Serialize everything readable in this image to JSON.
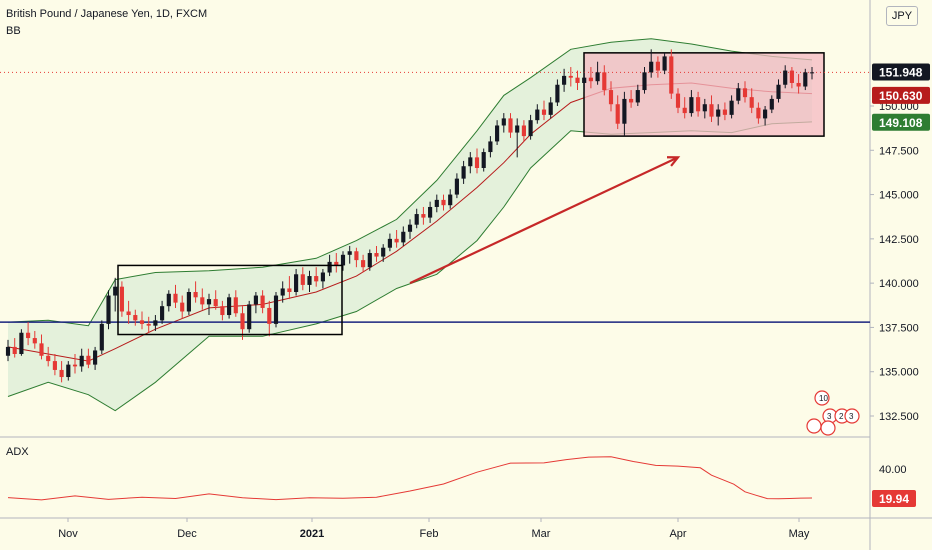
{
  "header": {
    "symbol": "British Pound / Japanese Yen, 1D, FXCM",
    "indicator": "BB",
    "currency_button": "JPY"
  },
  "adx_panel": {
    "label": "ADX"
  },
  "colors": {
    "background": "#fdfce8",
    "bull": "#131722",
    "bear": "#e53935",
    "bb_fill": "#cfe8cf",
    "bb_band": "#2e7d32",
    "bb_basis": "#b71c1c",
    "support_line": "#1a237e",
    "highlight_box": "#f4b9c3",
    "arrow": "#c62828",
    "adx_line": "#e53935"
  },
  "chart_data": [
    {
      "type": "candlestick",
      "title": "British Pound / Japanese Yen, 1D, FXCM",
      "overlay": "BB",
      "y_axis_ticks": [
        132.5,
        135.0,
        137.5,
        140.0,
        142.5,
        145.0,
        147.5,
        150.0
      ],
      "x_axis_ticks": [
        "Nov",
        "Dec",
        "2021",
        "Feb",
        "Mar",
        "Apr",
        "May"
      ],
      "price_labels": [
        {
          "value": "151.948",
          "bg": "#131722"
        },
        {
          "value": "150.630",
          "bg": "#b71c1c"
        },
        {
          "value": "149.108",
          "bg": "#2e7d32"
        }
      ],
      "horizontal_line": 137.8,
      "annotations": {
        "consolidation_box": {
          "price_low": 137.1,
          "price_high": 141.0,
          "from": "Nov 12",
          "to": "Jan 13"
        },
        "resistance_box": {
          "price_low": 148.3,
          "price_high": 153.0,
          "from": "Mar 11",
          "to": "May 6"
        },
        "trend_arrow": {
          "from": [
            60,
            140.0
          ],
          "to": [
            100,
            147.1
          ]
        }
      },
      "ylim": [
        131.2,
        155.3
      ],
      "candles": [
        [
          135.9,
          136.8,
          135.6,
          136.4
        ],
        [
          136.4,
          136.9,
          135.8,
          136.0
        ],
        [
          136.0,
          137.4,
          135.9,
          137.2
        ],
        [
          137.2,
          137.8,
          136.5,
          136.9
        ],
        [
          136.9,
          137.3,
          136.3,
          136.6
        ],
        [
          136.6,
          137.1,
          135.7,
          135.9
        ],
        [
          135.9,
          136.4,
          135.3,
          135.6
        ],
        [
          135.6,
          136.0,
          134.8,
          135.1
        ],
        [
          135.1,
          135.6,
          134.4,
          134.7
        ],
        [
          134.7,
          135.6,
          134.5,
          135.4
        ],
        [
          135.4,
          136.0,
          134.9,
          135.3
        ],
        [
          135.3,
          136.3,
          135.0,
          135.9
        ],
        [
          135.9,
          136.3,
          135.2,
          135.4
        ],
        [
          135.4,
          136.4,
          135.1,
          136.2
        ],
        [
          136.2,
          137.9,
          136.0,
          137.7
        ],
        [
          137.7,
          139.6,
          137.4,
          139.3
        ],
        [
          139.3,
          140.3,
          138.4,
          139.8
        ],
        [
          139.8,
          140.1,
          138.1,
          138.4
        ],
        [
          138.4,
          139.0,
          137.7,
          138.2
        ],
        [
          138.2,
          138.5,
          137.6,
          137.9
        ],
        [
          137.9,
          138.4,
          137.4,
          137.7
        ],
        [
          137.7,
          138.1,
          137.2,
          137.6
        ],
        [
          137.6,
          138.2,
          137.3,
          137.9
        ],
        [
          137.9,
          139.0,
          137.7,
          138.7
        ],
        [
          138.7,
          139.6,
          138.4,
          139.4
        ],
        [
          139.4,
          139.9,
          138.6,
          138.9
        ],
        [
          138.9,
          139.3,
          138.0,
          138.4
        ],
        [
          138.4,
          139.7,
          138.2,
          139.5
        ],
        [
          139.5,
          140.1,
          138.9,
          139.2
        ],
        [
          139.2,
          139.7,
          138.5,
          138.8
        ],
        [
          138.8,
          139.4,
          138.2,
          139.1
        ],
        [
          139.1,
          139.6,
          138.5,
          138.7
        ],
        [
          138.7,
          139.0,
          137.9,
          138.2
        ],
        [
          138.2,
          139.4,
          138.0,
          139.2
        ],
        [
          139.2,
          139.6,
          138.1,
          138.3
        ],
        [
          138.3,
          138.7,
          136.8,
          137.4
        ],
        [
          137.4,
          139.0,
          137.2,
          138.8
        ],
        [
          138.8,
          139.5,
          138.3,
          139.3
        ],
        [
          139.3,
          139.6,
          138.3,
          138.6
        ],
        [
          138.6,
          139.0,
          137.0,
          137.7
        ],
        [
          137.7,
          139.5,
          137.5,
          139.3
        ],
        [
          139.3,
          140.1,
          138.9,
          139.7
        ],
        [
          139.7,
          140.4,
          139.1,
          139.5
        ],
        [
          139.5,
          140.8,
          139.3,
          140.5
        ],
        [
          140.5,
          140.9,
          139.6,
          139.9
        ],
        [
          139.9,
          140.7,
          139.5,
          140.4
        ],
        [
          140.4,
          140.9,
          139.8,
          140.1
        ],
        [
          140.1,
          140.8,
          139.7,
          140.6
        ],
        [
          140.6,
          141.6,
          140.4,
          141.2
        ],
        [
          141.2,
          141.7,
          140.6,
          141.0
        ],
        [
          141.0,
          141.8,
          140.7,
          141.6
        ],
        [
          141.6,
          142.1,
          141.1,
          141.8
        ],
        [
          141.8,
          142.0,
          140.9,
          141.3
        ],
        [
          141.3,
          141.6,
          140.6,
          140.9
        ],
        [
          140.9,
          141.9,
          140.7,
          141.7
        ],
        [
          141.7,
          142.1,
          141.2,
          141.5
        ],
        [
          141.5,
          142.2,
          141.2,
          142.0
        ],
        [
          142.0,
          142.8,
          141.8,
          142.5
        ],
        [
          142.5,
          143.0,
          142.0,
          142.3
        ],
        [
          142.3,
          143.2,
          142.1,
          142.9
        ],
        [
          142.9,
          143.6,
          142.5,
          143.3
        ],
        [
          143.3,
          144.2,
          143.1,
          143.9
        ],
        [
          143.9,
          144.3,
          143.3,
          143.7
        ],
        [
          143.7,
          144.6,
          143.4,
          144.3
        ],
        [
          144.3,
          145.0,
          144.0,
          144.7
        ],
        [
          144.7,
          145.0,
          144.1,
          144.4
        ],
        [
          144.4,
          145.3,
          144.2,
          145.0
        ],
        [
          145.0,
          146.2,
          144.8,
          145.9
        ],
        [
          145.9,
          146.9,
          145.6,
          146.6
        ],
        [
          146.6,
          147.4,
          146.2,
          147.1
        ],
        [
          147.1,
          147.6,
          146.2,
          146.5
        ],
        [
          146.5,
          147.6,
          146.3,
          147.4
        ],
        [
          147.4,
          148.3,
          147.1,
          148.0
        ],
        [
          148.0,
          149.2,
          147.8,
          148.9
        ],
        [
          148.9,
          149.6,
          148.5,
          149.3
        ],
        [
          149.3,
          149.6,
          148.2,
          148.5
        ],
        [
          148.5,
          149.3,
          147.1,
          148.9
        ],
        [
          148.9,
          149.2,
          148.0,
          148.3
        ],
        [
          148.3,
          149.5,
          148.1,
          149.2
        ],
        [
          149.2,
          150.1,
          149.0,
          149.8
        ],
        [
          149.8,
          150.3,
          149.2,
          149.5
        ],
        [
          149.5,
          150.5,
          149.3,
          150.2
        ],
        [
          150.2,
          151.5,
          150.0,
          151.2
        ],
        [
          151.2,
          152.1,
          150.8,
          151.7
        ],
        [
          151.7,
          152.2,
          151.1,
          151.6
        ],
        [
          151.6,
          152.0,
          150.9,
          151.3
        ],
        [
          151.3,
          151.9,
          150.8,
          151.6
        ],
        [
          151.6,
          152.2,
          151.0,
          151.4
        ],
        [
          151.4,
          152.5,
          151.2,
          151.9
        ],
        [
          151.9,
          152.3,
          150.6,
          150.9
        ],
        [
          150.9,
          151.4,
          149.7,
          150.1
        ],
        [
          150.1,
          150.6,
          148.7,
          149.0
        ],
        [
          149.0,
          150.8,
          148.3,
          150.4
        ],
        [
          150.4,
          150.9,
          149.9,
          150.2
        ],
        [
          150.2,
          151.2,
          150.0,
          150.9
        ],
        [
          150.9,
          152.2,
          150.7,
          151.9
        ],
        [
          151.9,
          153.2,
          151.6,
          152.5
        ],
        [
          152.5,
          152.8,
          151.6,
          152.0
        ],
        [
          152.0,
          153.0,
          151.8,
          152.8
        ],
        [
          152.8,
          153.2,
          150.4,
          150.7
        ],
        [
          150.7,
          151.0,
          149.6,
          149.9
        ],
        [
          149.9,
          150.5,
          149.3,
          149.6
        ],
        [
          149.6,
          150.9,
          149.4,
          150.5
        ],
        [
          150.5,
          150.8,
          149.4,
          149.7
        ],
        [
          149.7,
          150.4,
          149.3,
          150.1
        ],
        [
          150.1,
          150.6,
          149.1,
          149.4
        ],
        [
          149.4,
          150.1,
          148.9,
          149.8
        ],
        [
          149.8,
          150.2,
          149.2,
          149.5
        ],
        [
          149.5,
          150.6,
          149.3,
          150.3
        ],
        [
          150.3,
          151.3,
          150.1,
          151.0
        ],
        [
          151.0,
          151.4,
          150.2,
          150.5
        ],
        [
          150.5,
          151.0,
          149.6,
          149.9
        ],
        [
          149.9,
          150.2,
          149.0,
          149.3
        ],
        [
          149.3,
          150.0,
          148.9,
          149.8
        ],
        [
          149.8,
          150.6,
          149.6,
          150.4
        ],
        [
          150.4,
          151.5,
          150.2,
          151.2
        ],
        [
          151.2,
          152.3,
          151.0,
          152.0
        ],
        [
          152.0,
          152.2,
          151.0,
          151.3
        ],
        [
          151.3,
          151.8,
          150.7,
          151.1
        ],
        [
          151.1,
          152.1,
          150.9,
          151.9
        ],
        [
          151.9,
          152.2,
          151.5,
          151.9
        ]
      ],
      "bb_upper": [
        [
          0,
          137.8
        ],
        [
          6,
          137.9
        ],
        [
          12,
          137.6
        ],
        [
          16,
          140.2
        ],
        [
          22,
          140.6
        ],
        [
          30,
          140.7
        ],
        [
          38,
          140.9
        ],
        [
          46,
          141.4
        ],
        [
          52,
          142.4
        ],
        [
          58,
          143.6
        ],
        [
          64,
          145.8
        ],
        [
          70,
          148.6
        ],
        [
          74,
          150.6
        ],
        [
          78,
          151.6
        ],
        [
          84,
          153.2
        ],
        [
          90,
          153.6
        ],
        [
          96,
          153.8
        ],
        [
          102,
          153.5
        ],
        [
          108,
          153.1
        ],
        [
          114,
          152.8
        ],
        [
          120,
          152.6
        ]
      ],
      "bb_basis": [
        [
          0,
          136.4
        ],
        [
          6,
          136.0
        ],
        [
          12,
          135.6
        ],
        [
          16,
          136.3
        ],
        [
          22,
          137.4
        ],
        [
          30,
          138.6
        ],
        [
          38,
          138.8
        ],
        [
          46,
          139.5
        ],
        [
          52,
          140.4
        ],
        [
          58,
          141.8
        ],
        [
          64,
          143.5
        ],
        [
          70,
          145.4
        ],
        [
          74,
          146.8
        ],
        [
          78,
          148.4
        ],
        [
          84,
          150.2
        ],
        [
          90,
          151.0
        ],
        [
          96,
          151.2
        ],
        [
          102,
          151.3
        ],
        [
          108,
          151.0
        ],
        [
          114,
          150.8
        ],
        [
          120,
          150.7
        ]
      ],
      "bb_lower": [
        [
          0,
          133.6
        ],
        [
          6,
          134.4
        ],
        [
          12,
          133.7
        ],
        [
          16,
          132.8
        ],
        [
          22,
          134.4
        ],
        [
          30,
          137.0
        ],
        [
          38,
          137.0
        ],
        [
          46,
          137.7
        ],
        [
          52,
          138.4
        ],
        [
          58,
          139.7
        ],
        [
          64,
          140.5
        ],
        [
          70,
          142.4
        ],
        [
          74,
          144.3
        ],
        [
          78,
          146.5
        ],
        [
          84,
          148.6
        ],
        [
          90,
          148.4
        ],
        [
          96,
          148.5
        ],
        [
          102,
          148.6
        ],
        [
          108,
          148.5
        ],
        [
          114,
          149.0
        ],
        [
          120,
          149.1
        ]
      ]
    },
    {
      "type": "line",
      "title": "ADX",
      "y_axis_ticks": [
        40.0
      ],
      "last_value": "19.94",
      "ylim": [
        10,
        55
      ],
      "values": [
        [
          0,
          20.2
        ],
        [
          6,
          18.6
        ],
        [
          12,
          21.4
        ],
        [
          18,
          19.0
        ],
        [
          24,
          20.5
        ],
        [
          30,
          19.6
        ],
        [
          36,
          22.8
        ],
        [
          42,
          20.1
        ],
        [
          48,
          18.8
        ],
        [
          54,
          20.1
        ],
        [
          60,
          19.8
        ],
        [
          66,
          20.5
        ],
        [
          72,
          24.8
        ],
        [
          78,
          29.6
        ],
        [
          84,
          37.8
        ],
        [
          90,
          44.1
        ],
        [
          96,
          44.2
        ],
        [
          100,
          46.5
        ],
        [
          104,
          48.2
        ],
        [
          108,
          48.5
        ],
        [
          112,
          45.2
        ],
        [
          116,
          42.5
        ],
        [
          120,
          42.0
        ],
        [
          124,
          40.8
        ],
        [
          126,
          35.7
        ],
        [
          128,
          32.6
        ],
        [
          130,
          29.5
        ],
        [
          132,
          24.2
        ],
        [
          134,
          21.8
        ],
        [
          136,
          19.5
        ],
        [
          138,
          19.4
        ],
        [
          140,
          19.6
        ],
        [
          142,
          19.9
        ],
        [
          144,
          19.94
        ]
      ]
    }
  ]
}
